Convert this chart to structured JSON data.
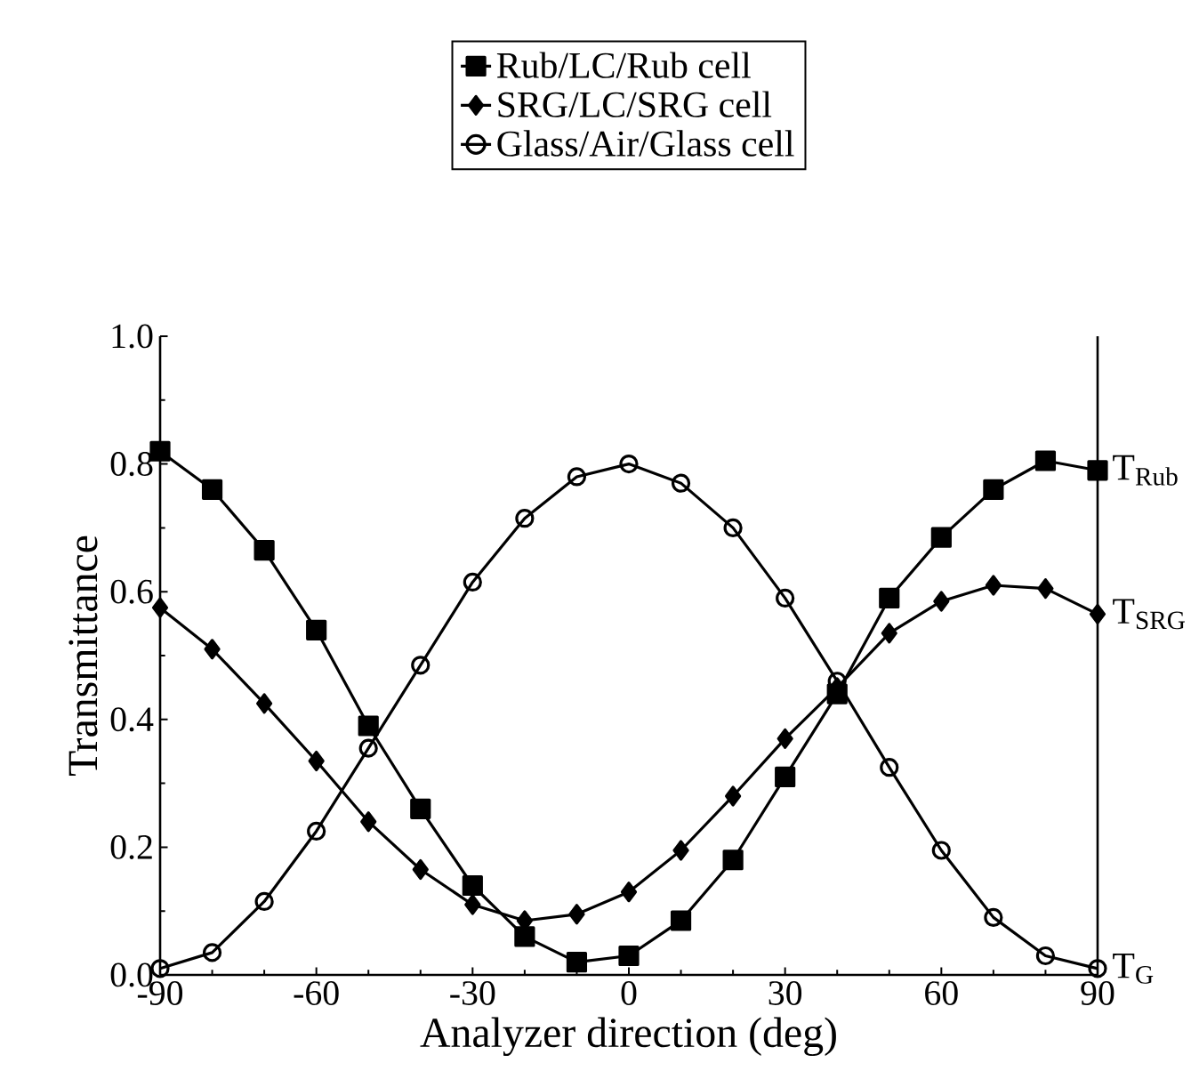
{
  "chart_data": {
    "type": "line",
    "xlabel": "Analyzer direction (deg)",
    "ylabel": "Transmittance",
    "x": [
      -90,
      -80,
      -70,
      -60,
      -50,
      -40,
      -30,
      -20,
      -10,
      0,
      10,
      20,
      30,
      40,
      50,
      60,
      70,
      80,
      90
    ],
    "series": [
      {
        "name": "Rub/LC/Rub cell",
        "color": "#000000",
        "marker": "square",
        "values": [
          0.82,
          0.76,
          0.665,
          0.54,
          0.39,
          0.26,
          0.14,
          0.06,
          0.02,
          0.03,
          0.085,
          0.18,
          0.31,
          0.44,
          0.59,
          0.685,
          0.76,
          0.805,
          0.79
        ]
      },
      {
        "name": "SRG/LC/SRG cell",
        "color": "#000000",
        "marker": "diamond",
        "values": [
          0.575,
          0.51,
          0.425,
          0.335,
          0.24,
          0.165,
          0.11,
          0.085,
          0.095,
          0.13,
          0.195,
          0.28,
          0.37,
          0.45,
          0.535,
          0.585,
          0.61,
          0.605,
          0.565
        ]
      },
      {
        "name": "Glass/Air/Glass cell",
        "color": "#000000",
        "marker": "circle",
        "values": [
          0.01,
          0.035,
          0.115,
          0.225,
          0.355,
          0.485,
          0.615,
          0.715,
          0.78,
          0.8,
          0.77,
          0.7,
          0.59,
          0.46,
          0.325,
          0.195,
          0.09,
          0.03,
          0.01
        ]
      }
    ],
    "xlim": [
      -90,
      90
    ],
    "xticks": [
      -90,
      -60,
      -30,
      0,
      30,
      60,
      90
    ],
    "ylim": [
      0.0,
      1.0
    ],
    "yticks": [
      {
        "value": 0,
        "label": "0.0"
      },
      0.2,
      0.4,
      0.6,
      0.8,
      {
        "value": 1,
        "label": "1.0"
      }
    ],
    "legend": "top",
    "grid": false,
    "line_style": "solid",
    "annotations": [
      "T$_{Rub}$",
      "T$_{SRG}$",
      "T$_{G}$"
    ]
  }
}
